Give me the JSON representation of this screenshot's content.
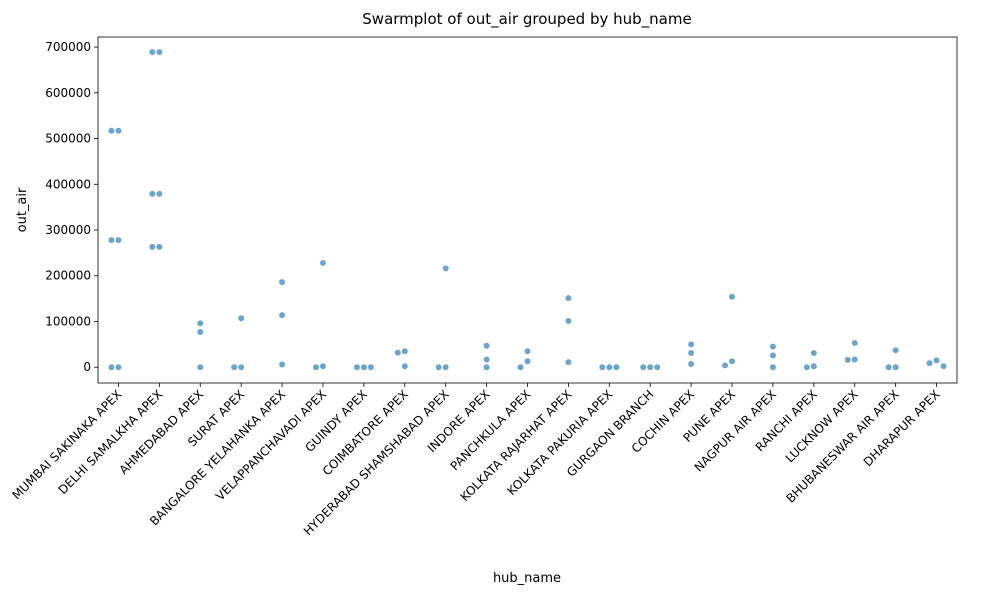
{
  "chart_data": {
    "type": "swarm",
    "title": "Swarmplot of out_air grouped by hub_name",
    "x_label": "hub_name",
    "y_label": "out_air",
    "color": "#5b9bc9",
    "categories": [
      "MUMBAI SAKINAKA APEX",
      "DELHI SAMALKHA APEX",
      "AHMEDABAD APEX",
      "SURAT APEX",
      "BANGALORE YELAHANKA APEX",
      "VELAPPANCHAVADI APEX",
      "GUINDY APEX",
      "COIMBATORE APEX",
      "HYDERABAD SHAMSHABAD APEX",
      "INDORE APEX",
      "PANCHKULA APEX",
      "KOLKATA RAJARHAT APEX",
      "KOLKATA PAKURIA APEX",
      "GURGAON BRANCH",
      "COCHIN APEX",
      "PUNE APEX",
      "NAGPUR AIR APEX",
      "RANCHI APEX",
      "LUCKNOW APEX",
      "BHUBANESWAR AIR APEX",
      "DHARAPUR APEX"
    ],
    "groups": [
      [
        517000,
        517000,
        278000,
        278000,
        0,
        0
      ],
      [
        689000,
        689000,
        379000,
        379000,
        263000,
        263000
      ],
      [
        96000,
        77000,
        0
      ],
      [
        107000,
        0,
        0
      ],
      [
        186000,
        114000,
        6000
      ],
      [
        228000,
        2000,
        0
      ],
      [
        0,
        0,
        0
      ],
      [
        35000,
        32000,
        2000
      ],
      [
        216000,
        0,
        0
      ],
      [
        47000,
        17000,
        0
      ],
      [
        35000,
        13000,
        0
      ],
      [
        151000,
        101000,
        11000
      ],
      [
        0,
        0,
        0
      ],
      [
        0,
        0,
        0
      ],
      [
        50000,
        31000,
        7000
      ],
      [
        154000,
        13000,
        4000
      ],
      [
        45000,
        26000,
        0
      ],
      [
        31000,
        2000,
        0
      ],
      [
        53000,
        17000,
        16000
      ],
      [
        37000,
        0,
        0
      ],
      [
        15000,
        9000,
        2000
      ]
    ],
    "ylim": [
      -34500,
      722000
    ],
    "yticks": [
      0,
      100000,
      200000,
      300000,
      400000,
      500000,
      600000,
      700000
    ]
  }
}
